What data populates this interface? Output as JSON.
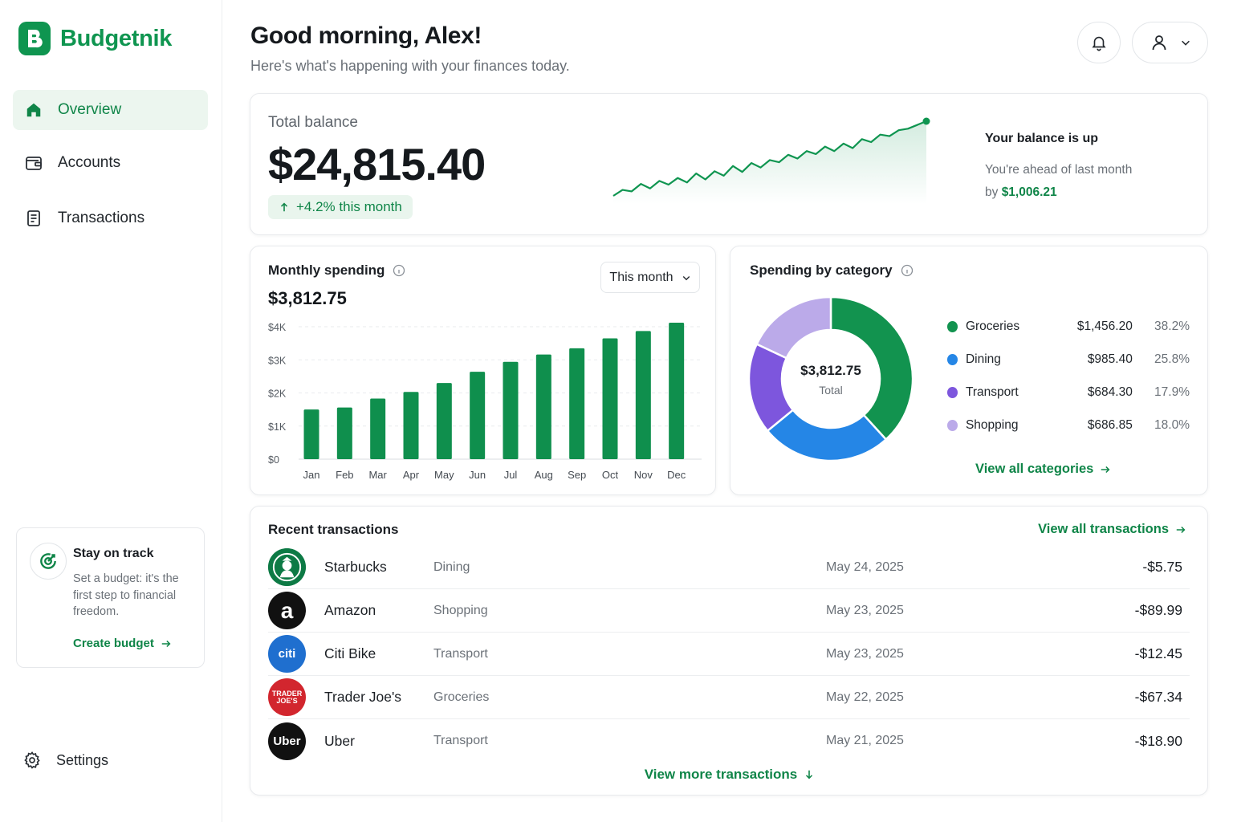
{
  "app": {
    "name": "Budgetnik"
  },
  "sidebar": {
    "items": [
      {
        "label": "Overview",
        "icon": "home-icon",
        "active": true
      },
      {
        "label": "Accounts",
        "icon": "wallet-icon",
        "active": false
      },
      {
        "label": "Transactions",
        "icon": "receipt-icon",
        "active": false
      }
    ],
    "budget_card": {
      "title": "Stay on track",
      "text": "Set a budget: it's the first step to financial freedom.",
      "link": "Create budget"
    },
    "settings_label": "Settings"
  },
  "header": {
    "greeting": "Good morning, Alex!",
    "subtitle": "Here's what's happening with your finances today."
  },
  "balance": {
    "label": "Total balance",
    "value": "$24,815.40",
    "change": "+4.2% this month",
    "up_title": "Your balance is up",
    "up_text": "You're ahead of last month",
    "up_by": "by",
    "up_amount": "$1,006.21",
    "trend": [
      0.0,
      0.08,
      0.06,
      0.16,
      0.1,
      0.2,
      0.15,
      0.24,
      0.18,
      0.3,
      0.22,
      0.33,
      0.27,
      0.4,
      0.32,
      0.44,
      0.38,
      0.48,
      0.45,
      0.55,
      0.5,
      0.6,
      0.56,
      0.66,
      0.6,
      0.7,
      0.64,
      0.76,
      0.72,
      0.82,
      0.8,
      0.88,
      0.9,
      0.95,
      1.0
    ]
  },
  "spending": {
    "title": "Monthly spending",
    "total": "$3,812.75",
    "range": "This month"
  },
  "chart_data": {
    "type": "bar",
    "categories": [
      "Jan",
      "Feb",
      "Mar",
      "Apr",
      "May",
      "Jun",
      "Jul",
      "Aug",
      "Sep",
      "Oct",
      "Nov",
      "Dec"
    ],
    "values": [
      1500,
      1560,
      1830,
      2030,
      2300,
      2640,
      2940,
      3160,
      3350,
      3650,
      3870,
      4120
    ],
    "yticks": [
      "$0",
      "$1K",
      "$2K",
      "$3K",
      "$4K"
    ],
    "ylim": [
      0,
      4000
    ],
    "color": "#0f8f4d"
  },
  "categories": {
    "title": "Spending by category",
    "total_value": "$3,812.75",
    "total_label": "Total",
    "items": [
      {
        "name": "Groceries",
        "amount": "$1,456.20",
        "pct": "38.2%",
        "value": 38.2,
        "color": "#12934f"
      },
      {
        "name": "Dining",
        "amount": "$985.40",
        "pct": "25.8%",
        "value": 25.8,
        "color": "#2586e6"
      },
      {
        "name": "Transport",
        "amount": "$684.30",
        "pct": "17.9%",
        "value": 17.9,
        "color": "#7d56dd"
      },
      {
        "name": "Shopping",
        "amount": "$686.85",
        "pct": "18.0%",
        "value": 18.0,
        "color": "#bbaae9"
      }
    ],
    "link": "View all categories"
  },
  "transactions": {
    "title": "Recent transactions",
    "view_all": "View all transactions",
    "more": "View more transactions",
    "rows": [
      {
        "name": "Starbucks",
        "category": "Dining",
        "date": "May 24, 2025",
        "amount": "-$5.75",
        "logo": "",
        "logo_icon": "starbucks-logo-icon",
        "logo_bg": "#0d7a45"
      },
      {
        "name": "Amazon",
        "category": "Shopping",
        "date": "May 23, 2025",
        "amount": "-$89.99",
        "logo": "a",
        "logo_bg": "#111111"
      },
      {
        "name": "Citi Bike",
        "category": "Transport",
        "date": "May 23, 2025",
        "amount": "-$12.45",
        "logo": "citi",
        "logo_bg": "#1f6fcf"
      },
      {
        "name": "Trader Joe's",
        "category": "Groceries",
        "date": "May 22, 2025",
        "amount": "-$67.34",
        "logo": "TRADER JOE'S",
        "logo_bg": "#d2262e"
      },
      {
        "name": "Uber",
        "category": "Transport",
        "date": "May 21, 2025",
        "amount": "-$18.90",
        "logo": "Uber",
        "logo_bg": "#111111"
      }
    ]
  }
}
